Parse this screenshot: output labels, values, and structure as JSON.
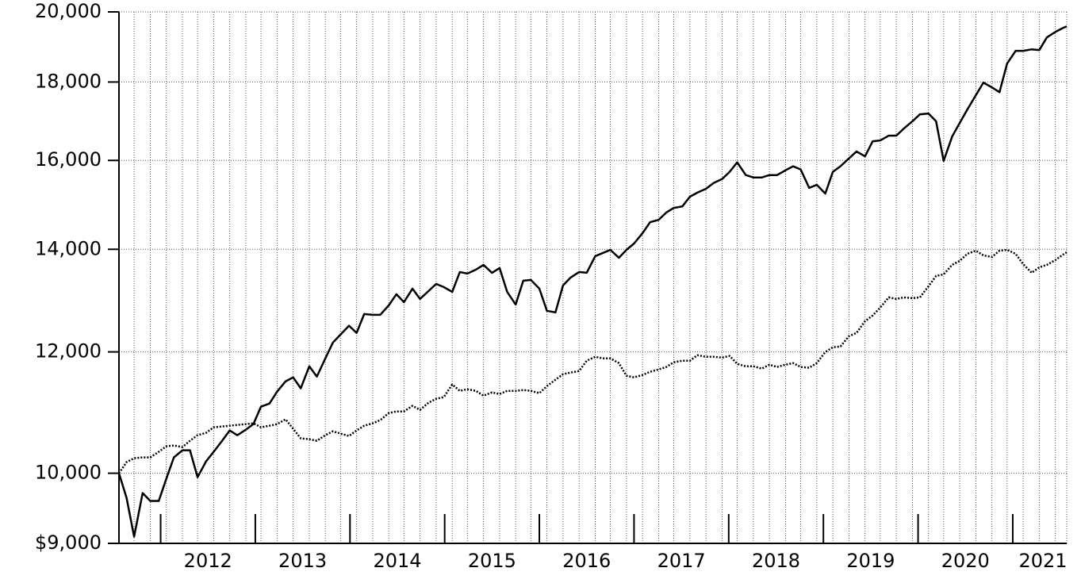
{
  "chart_data": {
    "type": "line",
    "log_scale": true,
    "grid": true,
    "x": [
      2011.56,
      2011.64,
      2011.72,
      2011.81,
      2011.89,
      2011.98,
      2012.06,
      2012.14,
      2012.23,
      2012.31,
      2012.39,
      2012.48,
      2012.56,
      2012.65,
      2012.73,
      2012.81,
      2012.9,
      2012.98,
      2013.06,
      2013.15,
      2013.23,
      2013.32,
      2013.4,
      2013.48,
      2013.57,
      2013.65,
      2013.74,
      2013.82,
      2013.9,
      2013.99,
      2014.07,
      2014.15,
      2014.24,
      2014.32,
      2014.41,
      2014.49,
      2014.57,
      2014.66,
      2014.74,
      2014.83,
      2014.91,
      2014.99,
      2015.08,
      2015.16,
      2015.24,
      2015.33,
      2015.41,
      2015.5,
      2015.58,
      2015.66,
      2015.75,
      2015.83,
      2015.91,
      2016.0,
      2016.08,
      2016.17,
      2016.25,
      2016.33,
      2016.42,
      2016.5,
      2016.59,
      2016.67,
      2016.75,
      2016.84,
      2016.92,
      2017.0,
      2017.09,
      2017.17,
      2017.26,
      2017.34,
      2017.42,
      2017.51,
      2017.59,
      2017.67,
      2017.76,
      2017.84,
      2017.93,
      2018.01,
      2018.09,
      2018.18,
      2018.26,
      2018.35,
      2018.43,
      2018.51,
      2018.6,
      2018.68,
      2018.76,
      2018.85,
      2018.93,
      2019.02,
      2019.1,
      2019.18,
      2019.27,
      2019.35,
      2019.44,
      2019.52,
      2019.6,
      2019.69,
      2019.77,
      2019.85,
      2019.94,
      2020.02,
      2020.11,
      2020.19,
      2020.27,
      2020.36,
      2020.44,
      2020.52,
      2020.61,
      2020.69,
      2020.78,
      2020.86,
      2020.94,
      2021.03,
      2021.11,
      2021.2,
      2021.28,
      2021.36,
      2021.45,
      2021.53,
      2021.57
    ],
    "series": [
      {
        "color": "#000000",
        "dash": "solid",
        "values": [
          10000,
          9638,
          9092,
          9707,
          9592,
          9592,
          9917,
          10241,
          10351,
          10351,
          9941,
          10180,
          10327,
          10500,
          10664,
          10588,
          10677,
          10766,
          11052,
          11105,
          11305,
          11481,
          11549,
          11360,
          11743,
          11563,
          11884,
          12170,
          12317,
          12481,
          12347,
          12703,
          12688,
          12688,
          12870,
          13086,
          12932,
          13196,
          12994,
          13149,
          13291,
          13228,
          13133,
          13530,
          13498,
          13579,
          13676,
          13514,
          13611,
          13133,
          12885,
          13354,
          13370,
          13196,
          12764,
          12734,
          13260,
          13418,
          13530,
          13514,
          13856,
          13922,
          13988,
          13823,
          13988,
          14122,
          14343,
          14583,
          14634,
          14794,
          14898,
          14932,
          15151,
          15246,
          15333,
          15466,
          15559,
          15728,
          15954,
          15651,
          15595,
          15595,
          15651,
          15651,
          15765,
          15860,
          15784,
          15354,
          15424,
          15223,
          15728,
          15860,
          16048,
          16216,
          16099,
          16466,
          16487,
          16606,
          16606,
          16786,
          16969,
          17148,
          17168,
          16969,
          15990,
          16586,
          16927,
          17270,
          17646,
          17984,
          17855,
          17728,
          18506,
          18862,
          18862,
          18906,
          18884,
          19247,
          19407,
          19523,
          19569
        ]
      },
      {
        "color": "#000000",
        "dash": "dotted",
        "values": [
          10000,
          10168,
          10229,
          10241,
          10241,
          10327,
          10413,
          10426,
          10401,
          10500,
          10588,
          10626,
          10715,
          10728,
          10740,
          10753,
          10766,
          10779,
          10715,
          10740,
          10766,
          10844,
          10690,
          10538,
          10525,
          10500,
          10588,
          10651,
          10613,
          10576,
          10664,
          10740,
          10779,
          10831,
          10947,
          10973,
          10973,
          11065,
          10999,
          11118,
          11184,
          11211,
          11426,
          11318,
          11345,
          11318,
          11236,
          11291,
          11264,
          11318,
          11318,
          11332,
          11318,
          11278,
          11399,
          11508,
          11605,
          11633,
          11660,
          11842,
          11912,
          11884,
          11884,
          11800,
          11577,
          11549,
          11591,
          11647,
          11688,
          11731,
          11814,
          11842,
          11842,
          11941,
          11912,
          11912,
          11898,
          11927,
          11786,
          11743,
          11743,
          11702,
          11772,
          11731,
          11772,
          11800,
          11731,
          11717,
          11800,
          11997,
          12084,
          12098,
          12287,
          12347,
          12567,
          12673,
          12826,
          13024,
          12994,
          13024,
          13009,
          13024,
          13244,
          13450,
          13482,
          13676,
          13759,
          13905,
          13971,
          13872,
          13839,
          13971,
          13988,
          13905,
          13692,
          13514,
          13627,
          13676,
          13775,
          13888,
          13938
        ]
      }
    ],
    "xlim": [
      2011.56,
      2021.57
    ],
    "xticks": [
      2012,
      2013,
      2014,
      2015,
      2016,
      2017,
      2018,
      2019,
      2020,
      2021
    ],
    "ylim": [
      9000,
      20000
    ],
    "yticks": [
      {
        "value": 9000,
        "label": "$9,000"
      },
      {
        "value": 10000,
        "label": "10,000"
      },
      {
        "value": 12000,
        "label": "12,000"
      },
      {
        "value": 14000,
        "label": "14,000"
      },
      {
        "value": 16000,
        "label": "16,000"
      },
      {
        "value": 18000,
        "label": "18,000"
      },
      {
        "value": 20000,
        "label": "20,000"
      }
    ]
  }
}
